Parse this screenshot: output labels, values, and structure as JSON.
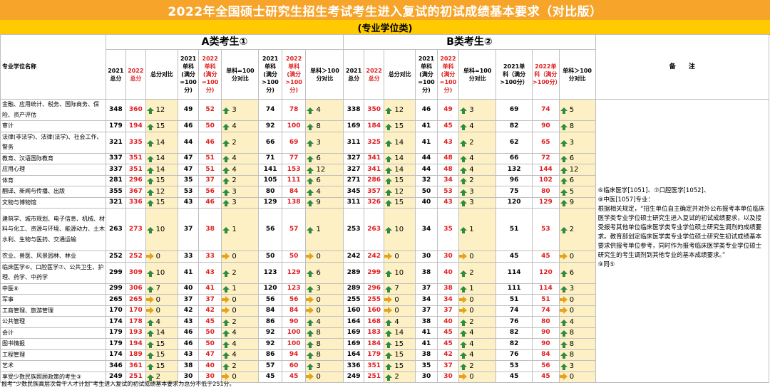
{
  "title": "2022年全国硕士研究生招生考试考生进入复试的初试成绩基本要求（对比版）",
  "subtitle": "(专业学位类)",
  "group_a": "A类考生①",
  "group_b": "B类考生②",
  "col_name": "专业学位名称",
  "col_remarks": "备　　注",
  "headers": [
    "2021\n总分",
    "2022\n总分",
    "总分对比",
    "2021\n单科\n(满分\n=100\n分)",
    "2022\n单科\n(满分\n=100\n分)",
    "单科=100\n分对比",
    "2021\n单科\n(满分\n>100\n分)",
    "2022\n单科\n(满分\n>100\n分)",
    "单科＞100\n分对比"
  ],
  "headers_b": [
    "2021\n总分",
    "2022\n总分",
    "总分对比",
    "2021\n单科\n(满分\n=100\n分)",
    "2022\n单科\n(满分\n=100\n分)",
    "单科=100\n分对比",
    "2021单\n科（满分\n>100分）",
    "2022单\n科（满分\n>100分）",
    "单科＞100\n分对比"
  ],
  "rows": [
    {
      "name": "金融、应用统计、税务、国际商务、保险、资产评估",
      "a": [
        348,
        360,
        "up",
        12,
        49,
        52,
        "up",
        3,
        74,
        78,
        "up",
        4
      ],
      "b": [
        338,
        350,
        "up",
        12,
        46,
        49,
        "up",
        3,
        69,
        74,
        "up",
        5
      ]
    },
    {
      "name": "审计",
      "a": [
        179,
        194,
        "up",
        15,
        46,
        50,
        "up",
        4,
        92,
        100,
        "up",
        8
      ],
      "b": [
        169,
        184,
        "up",
        15,
        41,
        45,
        "up",
        4,
        82,
        90,
        "up",
        8
      ]
    },
    {
      "name": "法律(非法学)、法律(法学)、社会工作、警务",
      "a": [
        321,
        335,
        "up",
        14,
        44,
        46,
        "up",
        2,
        66,
        69,
        "up",
        3
      ],
      "b": [
        311,
        325,
        "up",
        14,
        41,
        43,
        "up",
        2,
        62,
        65,
        "up",
        3
      ]
    },
    {
      "name": "教育、汉语国际教育",
      "a": [
        337,
        351,
        "up",
        14,
        47,
        51,
        "up",
        4,
        71,
        77,
        "up",
        6
      ],
      "b": [
        327,
        341,
        "up",
        14,
        44,
        48,
        "up",
        4,
        66,
        72,
        "up",
        6
      ]
    },
    {
      "name": "应用心理",
      "a": [
        337,
        351,
        "up",
        14,
        47,
        51,
        "up",
        4,
        141,
        153,
        "up",
        12
      ],
      "b": [
        327,
        341,
        "up",
        14,
        44,
        48,
        "up",
        4,
        132,
        144,
        "up",
        12
      ]
    },
    {
      "name": "体育",
      "a": [
        281,
        296,
        "up",
        15,
        35,
        37,
        "up",
        2,
        105,
        111,
        "up",
        6
      ],
      "b": [
        271,
        286,
        "up",
        15,
        32,
        34,
        "up",
        2,
        96,
        102,
        "up",
        6
      ]
    },
    {
      "name": "翻译、新闻与传播、出版",
      "a": [
        355,
        367,
        "up",
        12,
        53,
        56,
        "up",
        3,
        80,
        84,
        "up",
        4
      ],
      "b": [
        345,
        357,
        "up",
        12,
        50,
        53,
        "up",
        3,
        75,
        80,
        "up",
        5
      ]
    },
    {
      "name": "文物与博物馆",
      "a": [
        321,
        336,
        "up",
        15,
        43,
        46,
        "up",
        3,
        129,
        138,
        "up",
        9
      ],
      "b": [
        311,
        326,
        "up",
        15,
        40,
        43,
        "up",
        3,
        120,
        129,
        "up",
        9
      ]
    },
    {
      "name": "建筑学、城市规划、电子信息、机械、材料与化工、资源与环境、能源动力、土木水利、生物与医药、交通运输",
      "a": [
        263,
        273,
        "up",
        10,
        37,
        38,
        "up",
        1,
        56,
        57,
        "up",
        1
      ],
      "b": [
        253,
        263,
        "up",
        10,
        34,
        35,
        "up",
        1,
        51,
        53,
        "up",
        2
      ]
    },
    {
      "name": "农业、兽医、风景园林、林业",
      "a": [
        252,
        252,
        "right",
        0,
        33,
        33,
        "right",
        0,
        50,
        50,
        "right",
        0
      ],
      "b": [
        242,
        242,
        "right",
        0,
        30,
        30,
        "right",
        0,
        45,
        45,
        "right",
        0
      ]
    },
    {
      "name": "临床医学⑥、口腔医学⑦、公共卫生、护理、药学、中药学",
      "a": [
        299,
        309,
        "up",
        10,
        41,
        43,
        "up",
        2,
        123,
        129,
        "up",
        6
      ],
      "b": [
        289,
        299,
        "up",
        10,
        38,
        40,
        "up",
        2,
        114,
        120,
        "up",
        6
      ]
    },
    {
      "name": "中医⑧",
      "a": [
        299,
        306,
        "up",
        7,
        40,
        41,
        "up",
        1,
        120,
        123,
        "up",
        3
      ],
      "b": [
        289,
        296,
        "up",
        7,
        37,
        38,
        "up",
        1,
        111,
        114,
        "up",
        3
      ]
    },
    {
      "name": "军事",
      "a": [
        265,
        265,
        "right",
        0,
        37,
        37,
        "right",
        0,
        56,
        56,
        "right",
        0
      ],
      "b": [
        255,
        255,
        "right",
        0,
        34,
        34,
        "right",
        0,
        51,
        51,
        "right",
        0
      ]
    },
    {
      "name": "工商管理、旅游管理",
      "a": [
        170,
        170,
        "right",
        0,
        42,
        42,
        "right",
        0,
        84,
        84,
        "right",
        0
      ],
      "b": [
        160,
        160,
        "right",
        0,
        37,
        37,
        "right",
        0,
        74,
        74,
        "right",
        0
      ]
    },
    {
      "name": "公共管理",
      "a": [
        174,
        178,
        "up",
        4,
        43,
        45,
        "up",
        2,
        86,
        90,
        "up",
        4
      ],
      "b": [
        164,
        168,
        "up",
        4,
        38,
        40,
        "up",
        2,
        76,
        80,
        "up",
        4
      ]
    },
    {
      "name": "会计",
      "a": [
        179,
        193,
        "up",
        14,
        46,
        50,
        "up",
        4,
        92,
        100,
        "up",
        8
      ],
      "b": [
        169,
        183,
        "up",
        14,
        41,
        45,
        "up",
        4,
        82,
        90,
        "up",
        8
      ]
    },
    {
      "name": "图书情报",
      "a": [
        179,
        194,
        "up",
        15,
        46,
        50,
        "up",
        4,
        92,
        100,
        "up",
        8
      ],
      "b": [
        169,
        184,
        "up",
        15,
        41,
        45,
        "up",
        4,
        82,
        90,
        "up",
        8
      ]
    },
    {
      "name": "工程管理",
      "a": [
        174,
        189,
        "up",
        15,
        43,
        47,
        "up",
        4,
        86,
        94,
        "up",
        8
      ],
      "b": [
        164,
        179,
        "up",
        15,
        38,
        42,
        "up",
        4,
        76,
        84,
        "up",
        8
      ]
    },
    {
      "name": "艺术",
      "a": [
        346,
        361,
        "up",
        15,
        38,
        40,
        "up",
        2,
        57,
        60,
        "up",
        3
      ],
      "b": [
        336,
        351,
        "up",
        15,
        35,
        37,
        "up",
        2,
        53,
        56,
        "up",
        3
      ]
    },
    {
      "name": "享受少数民族照顾政策的考生③",
      "a": [
        249,
        251,
        "up",
        2,
        30,
        30,
        "right",
        0,
        45,
        45,
        "right",
        0
      ],
      "b": [
        249,
        251,
        "up",
        2,
        30,
        30,
        "right",
        0,
        45,
        45,
        "right",
        0
      ]
    }
  ],
  "remarks": [
    "⑥临床医学[1051]、⑦口腔医学[1052]、",
    "⑧中医[1057]专业：",
    "根据相关规定，“招生单位自主确定并对外公布报考本单位临床医学类专业学位硕士研究生进入复试的初试成绩要求，以及接受报考其他单位临床医学类专业学位硕士研究生调剂的成绩要求。教育部划定临床医学类专业学位硕士研究生初试成绩基本要求供报考单位参考，同时作为报考临床医学类专业学位硕士研究生的考生调剂到其他专业的基本成绩要求。”",
    "⑨同⑤"
  ],
  "footer": "报考“少数民族高层次骨干人才计划”考生进入复试的初试成绩基本要求为总分不低于251分。",
  "colors": {
    "title_bg": "#f6a52a",
    "subtitle_bg": "#ffcb00",
    "highlight_bg": "#fdf0c4",
    "up_arrow": "#2f8a45",
    "flat_arrow": "#e5a21b",
    "red_text": "#e02020"
  },
  "icons": {
    "up": "arrow-up-icon",
    "flat": "arrow-right-icon"
  }
}
